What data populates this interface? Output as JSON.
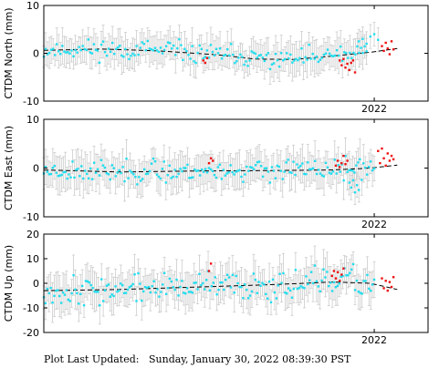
{
  "footer": {
    "label": "Plot Last Updated:",
    "timestamp": "Sunday, January 30, 2022 08:39:30 PST"
  },
  "colors": {
    "daily": "#22ddee",
    "rapid": "#ee1111",
    "errorbar": "#cccccc",
    "trend": "#000000"
  },
  "chart_data": [
    {
      "type": "scatter",
      "ylabel": "CTDM North (mm)",
      "ylim": [
        -10,
        10
      ],
      "yticks": [
        -10,
        0,
        10
      ],
      "xlim": [
        0,
        100
      ],
      "xtick_position": 86,
      "xtick_label": "2022",
      "trend": {
        "x": [
          0,
          15,
          30,
          45,
          55,
          65,
          75,
          85,
          92
        ],
        "y": [
          0.6,
          0.9,
          0.5,
          -0.3,
          -1.2,
          -1.3,
          -0.6,
          0.2,
          1.0
        ]
      },
      "series": [
        {
          "name": "",
          "kind": "daily",
          "x_range": [
            0,
            84
          ],
          "count": 175,
          "seed": 11,
          "noise": 1.6,
          "error": 3.0
        },
        {
          "name": "",
          "kind": "rapid",
          "x": [
            41.5,
            42,
            42.5,
            77,
            77.5,
            78,
            78.5,
            79,
            79.5,
            80,
            80.5,
            81,
            88,
            88.5,
            89,
            89.5,
            90,
            90.5,
            91
          ],
          "y": [
            -1.5,
            -2.0,
            -1.0,
            -1.5,
            -2.5,
            -1.2,
            -3.0,
            -2.2,
            -3.5,
            -2.0,
            -1.5,
            -4.0,
            1.5,
            0.5,
            2.2,
            1.0,
            -0.2,
            2.5,
            0.8
          ]
        },
        {
          "name": "",
          "kind": "daily",
          "x": [
            82,
            83,
            84,
            85,
            86,
            87
          ],
          "y": [
            2.5,
            3.0,
            2.0,
            3.5,
            4.0,
            2.8
          ]
        }
      ]
    },
    {
      "type": "scatter",
      "ylabel": "CTDM East (mm)",
      "ylim": [
        -10,
        10
      ],
      "yticks": [
        -10,
        0,
        10
      ],
      "xlim": [
        0,
        100
      ],
      "xtick_position": 86,
      "xtick_label": "2022",
      "trend": {
        "x": [
          0,
          20,
          40,
          60,
          75,
          85,
          92
        ],
        "y": [
          -0.4,
          -0.8,
          -0.6,
          -0.5,
          -0.4,
          0.0,
          0.6
        ]
      },
      "series": [
        {
          "name": "",
          "kind": "daily",
          "x_range": [
            0,
            86
          ],
          "count": 185,
          "seed": 23,
          "noise": 1.7,
          "error": 3.2
        },
        {
          "name": "",
          "kind": "rapid",
          "x": [
            43,
            43.5,
            44,
            76,
            76.5,
            77,
            77.5,
            78,
            78.5,
            79,
            87,
            87.5,
            88,
            88.5,
            89,
            89.5,
            90,
            90.5,
            91
          ],
          "y": [
            1.0,
            2.0,
            1.5,
            0.5,
            1.5,
            0.2,
            1.0,
            2.5,
            0.8,
            1.5,
            3.5,
            1.0,
            4.0,
            2.0,
            0.5,
            3.0,
            1.5,
            2.5,
            1.8
          ]
        },
        {
          "name": "",
          "kind": "daily",
          "x": [
            79.5,
            80,
            80.5,
            81,
            81.5,
            82
          ],
          "y": [
            -3.0,
            -4.0,
            -2.5,
            -5.0,
            -3.5,
            -4.5
          ]
        }
      ]
    },
    {
      "type": "scatter",
      "ylabel": "CTDM Up (mm)",
      "ylim": [
        -20,
        20
      ],
      "yticks": [
        -20,
        -10,
        0,
        10,
        20
      ],
      "xlim": [
        0,
        100
      ],
      "xtick_position": 86,
      "xtick_label": "2022",
      "trend": {
        "x": [
          0,
          20,
          40,
          60,
          75,
          85,
          92
        ],
        "y": [
          -3.0,
          -2.5,
          -1.5,
          -0.5,
          0.5,
          0.0,
          -2.5
        ]
      },
      "series": [
        {
          "name": "",
          "kind": "daily",
          "x_range": [
            0,
            86
          ],
          "count": 190,
          "seed": 37,
          "noise": 4.5,
          "error": 6.5
        },
        {
          "name": "",
          "kind": "rapid",
          "x": [
            43,
            43.5,
            75,
            75.5,
            76,
            76.5,
            77,
            77.5,
            78,
            88,
            88.5,
            89,
            89.5,
            90,
            90.5,
            91
          ],
          "y": [
            5.0,
            8.0,
            3.0,
            5.0,
            2.0,
            4.5,
            1.0,
            3.5,
            6.0,
            2.0,
            -2.0,
            1.0,
            -3.0,
            0.5,
            -1.5,
            2.5
          ]
        }
      ]
    }
  ]
}
